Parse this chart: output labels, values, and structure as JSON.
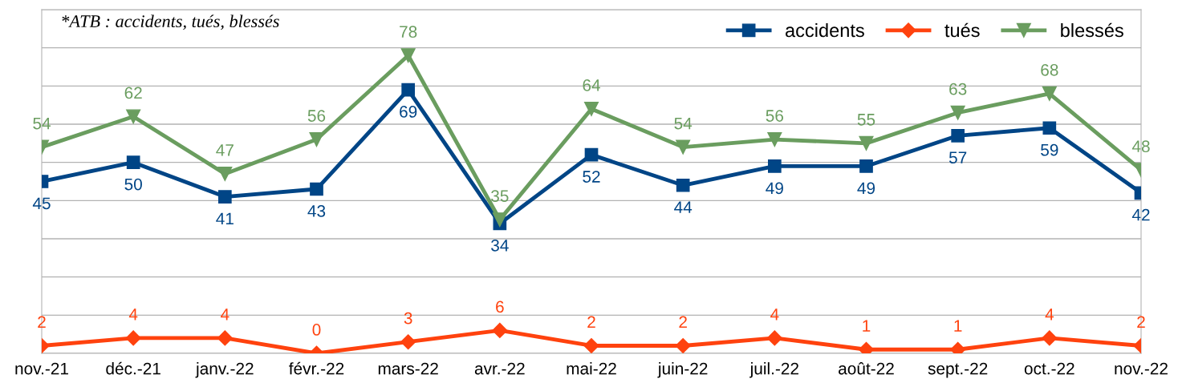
{
  "chart_data": {
    "type": "line",
    "categories": [
      "nov.-21",
      "déc.-21",
      "janv.-22",
      "févr.-22",
      "mars-22",
      "avr.-22",
      "mai-22",
      "juin-22",
      "juil.-22",
      "août-22",
      "sept.-22",
      "oct.-22",
      "nov.-22"
    ],
    "series": [
      {
        "name": "accidents",
        "color": "#004586",
        "marker": "square",
        "values": [
          45,
          50,
          41,
          43,
          69,
          34,
          52,
          44,
          49,
          49,
          57,
          59,
          42
        ]
      },
      {
        "name": "tués",
        "color": "#ff420e",
        "marker": "diamond",
        "values": [
          2,
          4,
          4,
          0,
          3,
          6,
          2,
          2,
          4,
          1,
          1,
          4,
          2
        ]
      },
      {
        "name": "blessés",
        "color": "#6a9d5f",
        "marker": "triangle",
        "values": [
          54,
          62,
          47,
          56,
          78,
          35,
          64,
          54,
          56,
          55,
          63,
          68,
          48
        ]
      }
    ],
    "ylim": [
      0,
      90
    ],
    "yticks": [
      {
        "value": 0,
        "label": null
      },
      {
        "value": 10,
        "label": null
      },
      {
        "value": 20,
        "label": null
      },
      {
        "value": 30,
        "label": null
      },
      {
        "value": 40,
        "label": null
      },
      {
        "value": 50,
        "label": null
      },
      {
        "value": 60,
        "label": null
      },
      {
        "value": 70,
        "label": null
      },
      {
        "value": 80,
        "label": null
      },
      {
        "value": 90,
        "label": null
      }
    ],
    "tick_labels": "x",
    "grid": "y",
    "legend": "top right",
    "data_labels": true,
    "line_style": "solid",
    "annotations": [
      "*ATB : accidents, tués, blessés"
    ]
  }
}
